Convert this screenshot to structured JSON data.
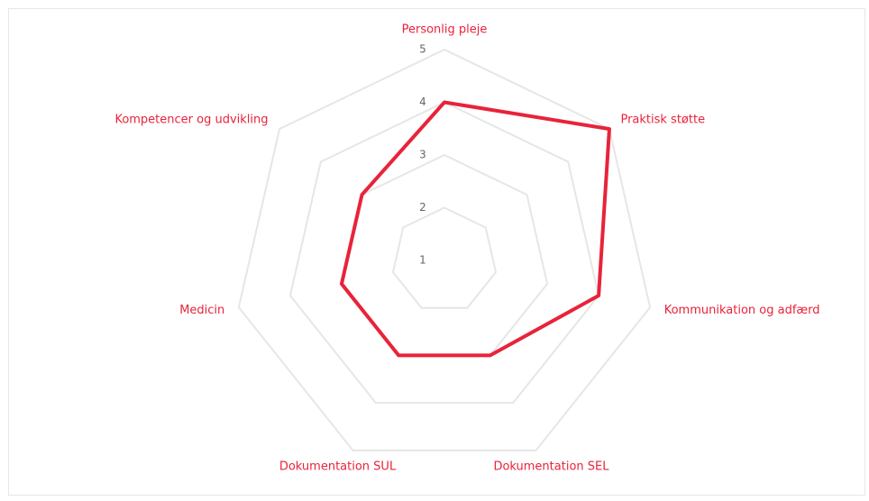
{
  "chart_data": {
    "type": "radar",
    "categories": [
      "Personlig pleje",
      "Praktisk støtte",
      "Kommunikation og adfærd",
      "Dokumentation SEL",
      "Dokumentation SUL",
      "Medicin",
      "Kompetencer og udvikling"
    ],
    "series": [
      {
        "color": "#e8233a",
        "values": [
          4,
          5,
          4,
          3,
          3,
          3,
          3
        ]
      }
    ],
    "ylim": [
      1,
      5
    ],
    "yticks": [
      1,
      2,
      3,
      4,
      5
    ],
    "grid": true
  }
}
